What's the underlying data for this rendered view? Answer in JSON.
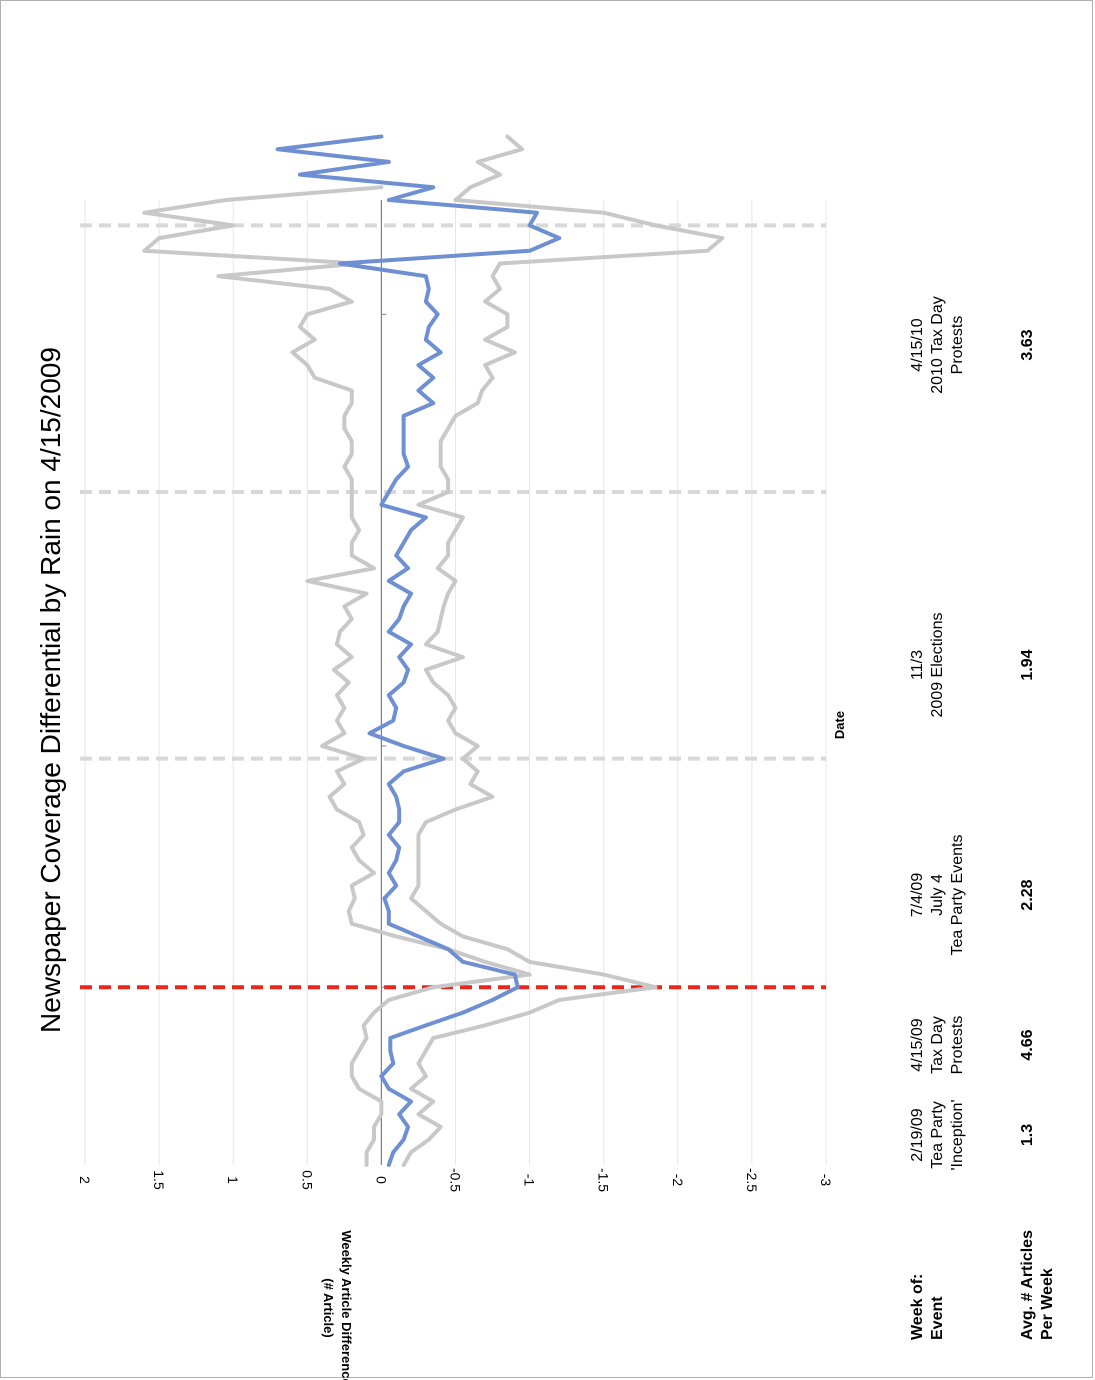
{
  "chart_data": {
    "type": "line",
    "title": "Newspaper Coverage Differential by Rain on 4/15/2009",
    "xlabel": "Date",
    "ylabel": "Weekly Article Difference\n(# Article)",
    "ylim": [
      -3,
      2
    ],
    "yticks": [
      2,
      1.5,
      1,
      0.5,
      0,
      -0.5,
      -1,
      -1.5,
      -2,
      -2.5,
      -3
    ],
    "ytick_labels": [
      "2",
      "1.5",
      "1",
      "0.5",
      "0",
      "-0.5",
      "-1",
      "-1.5",
      "-2",
      "-2.5",
      "-3"
    ],
    "x_range_weeks": [
      0,
      76
    ],
    "grid": "horizontal",
    "colors": {
      "estimate": "#6f8fd3",
      "bounds": "#c8c8c8",
      "event_line": "#d8d8d8",
      "tax_day_line": "#e8261c",
      "zero_line": "#808080"
    },
    "series": [
      {
        "values": [
          -0.05,
          -0.08,
          -0.15,
          -0.18,
          -0.12,
          -0.2,
          -0.05,
          0.0,
          -0.08,
          -0.06,
          -0.06,
          -0.3,
          -0.55,
          -0.75,
          -0.92,
          -0.9,
          -0.55,
          -0.45,
          -0.25,
          -0.05,
          -0.05,
          -0.02,
          -0.1,
          -0.05,
          -0.1,
          -0.12,
          -0.05,
          -0.12,
          -0.12,
          -0.1,
          -0.05,
          -0.15,
          -0.42,
          -0.15,
          0.08,
          -0.08,
          -0.1,
          -0.05,
          -0.15,
          -0.18,
          -0.12,
          -0.2,
          -0.05,
          -0.12,
          -0.15,
          -0.2,
          -0.05,
          -0.18,
          -0.1,
          -0.15,
          -0.2,
          -0.3,
          0.0,
          -0.05,
          -0.1,
          -0.18,
          -0.15,
          -0.15,
          -0.15,
          -0.15,
          -0.35,
          -0.25,
          -0.35,
          -0.25,
          -0.4,
          -0.3,
          -0.32,
          -0.38,
          -0.3,
          -0.32,
          -0.3,
          0.28,
          -1.0,
          -1.2,
          -1.0,
          -1.05,
          -0.05,
          -0.35,
          0.55,
          -0.05,
          0.7,
          0.0
        ]
      },
      {
        "values": [
          0.1,
          0.1,
          0.05,
          0.05,
          0.0,
          0.0,
          0.15,
          0.2,
          0.2,
          0.15,
          0.1,
          0.12,
          0.05,
          -0.05,
          -0.35,
          -1.0,
          -0.7,
          -0.45,
          -0.1,
          0.2,
          0.22,
          0.18,
          0.2,
          0.05,
          0.15,
          0.2,
          0.12,
          0.15,
          0.3,
          0.35,
          0.25,
          0.3,
          0.12,
          0.4,
          0.25,
          0.3,
          0.25,
          0.3,
          0.22,
          0.32,
          0.2,
          0.3,
          0.28,
          0.2,
          0.25,
          0.1,
          0.5,
          0.05,
          0.2,
          0.2,
          0.15,
          0.2,
          0.2,
          0.2,
          0.2,
          0.25,
          0.2,
          0.2,
          0.25,
          0.25,
          0.2,
          0.2,
          0.45,
          0.5,
          0.6,
          0.45,
          0.55,
          0.5,
          0.2,
          0.35,
          1.1,
          0.15,
          1.6,
          1.5,
          1.0,
          1.6,
          1.05,
          0.0
        ]
      },
      {
        "values": [
          -0.15,
          -0.2,
          -0.32,
          -0.4,
          -0.25,
          -0.35,
          -0.2,
          -0.3,
          -0.25,
          -0.3,
          -0.35,
          -0.7,
          -1.0,
          -1.2,
          -1.85,
          -1.5,
          -1.0,
          -0.85,
          -0.55,
          -0.4,
          -0.3,
          -0.2,
          -0.25,
          -0.25,
          -0.25,
          -0.25,
          -0.25,
          -0.3,
          -0.5,
          -0.75,
          -0.6,
          -0.65,
          -0.55,
          -0.65,
          -0.5,
          -0.45,
          -0.5,
          -0.45,
          -0.35,
          -0.3,
          -0.55,
          -0.3,
          -0.38,
          -0.4,
          -0.42,
          -0.45,
          -0.5,
          -0.38,
          -0.45,
          -0.45,
          -0.5,
          -0.55,
          -0.25,
          -0.45,
          -0.45,
          -0.4,
          -0.4,
          -0.4,
          -0.45,
          -0.5,
          -0.65,
          -0.68,
          -0.75,
          -0.7,
          -0.9,
          -0.7,
          -0.85,
          -0.85,
          -0.7,
          -0.8,
          -0.75,
          -0.8,
          -2.2,
          -2.3,
          -1.85,
          -1.5,
          -0.5,
          -0.6,
          -0.8,
          -0.65,
          -0.95,
          -0.85
        ]
      }
    ],
    "events": [
      {
        "week_of": "2/19/09",
        "event_lines": [
          "Tea Party",
          "'Inception'"
        ],
        "avg_articles": "1.3",
        "marker": false
      },
      {
        "week_of": "4/15/09",
        "event_lines": [
          "Tax Day",
          "Protests"
        ],
        "avg_articles": "4.66",
        "marker": true,
        "marker_week": 14
      },
      {
        "week_of": "7/4/09",
        "event_lines": [
          "July 4",
          "Tea Party Events"
        ],
        "avg_articles": "2.28",
        "marker": true,
        "marker_week": 32
      },
      {
        "week_of": "11/3",
        "event_lines": [
          "2009 Elections"
        ],
        "avg_articles": "1.94",
        "marker": true,
        "marker_week": 53
      },
      {
        "week_of": "4/15/10",
        "event_lines": [
          "2010 Tax Day",
          "Protests"
        ],
        "avg_articles": "3.63",
        "marker": true,
        "marker_week": 74
      }
    ],
    "row_labels": {
      "week_of": "Week of:",
      "event": "Event",
      "avg_lines": [
        "Avg. # Articles",
        "Per Week"
      ]
    }
  }
}
